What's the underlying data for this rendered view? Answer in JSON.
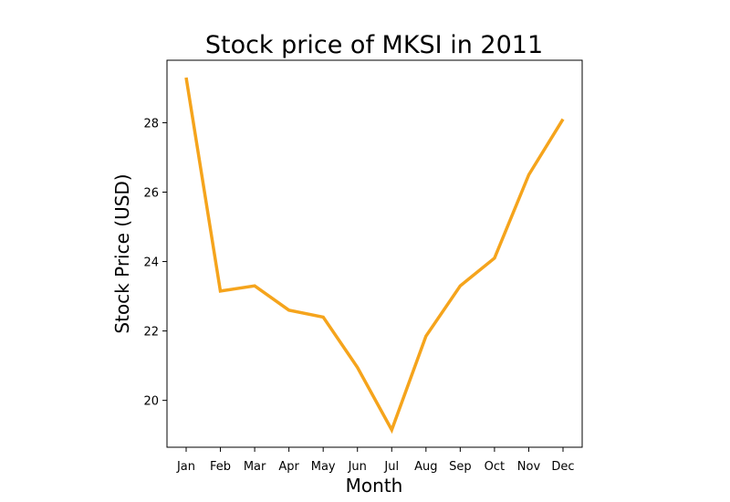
{
  "chart_data": {
    "type": "line",
    "title": "Stock price of MKSI in 2011",
    "xlabel": "Month",
    "ylabel": "Stock Price (USD)",
    "categories": [
      "Jan",
      "Feb",
      "Mar",
      "Apr",
      "May",
      "Jun",
      "Jul",
      "Aug",
      "Sep",
      "Oct",
      "Nov",
      "Dec"
    ],
    "series": [
      {
        "values": [
          29.3,
          23.15,
          23.3,
          22.6,
          22.4,
          20.95,
          19.15,
          21.85,
          23.3,
          24.1,
          26.5,
          28.1
        ],
        "color": "#f5a41c"
      }
    ],
    "yticks": [
      20,
      22,
      24,
      26,
      28
    ],
    "ylim": [
      18.65,
      29.8
    ],
    "grid": false,
    "legend": "none"
  }
}
